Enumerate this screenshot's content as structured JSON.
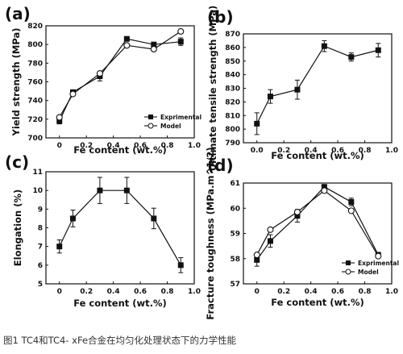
{
  "caption": "图1 TC4和TC4- xFe合金在均匀化处理状态下的力学性能",
  "chart_data": [
    {
      "panel": "(a)",
      "type": "line",
      "xlabel": "Fe content (wt.%)",
      "ylabel": "Yield strength (MPa)",
      "xlim": [
        -0.1,
        1.0
      ],
      "ylim": [
        700,
        820
      ],
      "xticks": [
        "0",
        "0.2",
        "0.4",
        "0.6",
        "0.8",
        "1.0"
      ],
      "yticks": [
        "700",
        "720",
        "740",
        "760",
        "780",
        "800",
        "820"
      ],
      "legend_position": "lower-right",
      "series": [
        {
          "name": "Exprimental",
          "marker": "filled-square",
          "x": [
            0,
            0.1,
            0.3,
            0.5,
            0.7,
            0.9
          ],
          "y": [
            718,
            749,
            766,
            806,
            800,
            803
          ],
          "err": [
            3,
            2,
            5,
            2,
            2,
            4
          ]
        },
        {
          "name": "Model",
          "marker": "open-circle",
          "x": [
            0,
            0.1,
            0.3,
            0.5,
            0.7,
            0.9
          ],
          "y": [
            722,
            747,
            769,
            799,
            795,
            814
          ]
        }
      ]
    },
    {
      "panel": "(b)",
      "type": "line",
      "xlabel": "Fe content (wt.%)",
      "ylabel": "Ultimate tensile strength (MPa)",
      "xlim": [
        -0.1,
        1.0
      ],
      "ylim": [
        790,
        870
      ],
      "xticks": [
        "0.0",
        "0.2",
        "0.4",
        "0.6",
        "0.8",
        "1.0"
      ],
      "yticks": [
        "790",
        "800",
        "810",
        "820",
        "830",
        "840",
        "850",
        "860",
        "870"
      ],
      "series": [
        {
          "marker": "filled-square",
          "x": [
            0,
            0.1,
            0.3,
            0.5,
            0.7,
            0.9
          ],
          "y": [
            804,
            824,
            829,
            861,
            853,
            858
          ],
          "err": [
            8,
            5,
            7,
            4,
            3,
            5
          ]
        }
      ]
    },
    {
      "panel": "(c)",
      "type": "line",
      "xlabel": "Fe content (wt.%)",
      "ylabel": "Elongation (%)",
      "xlim": [
        -0.1,
        1.0
      ],
      "ylim": [
        5,
        11
      ],
      "xticks": [
        "0",
        "0.2",
        "0.4",
        "0.6",
        "0.8",
        "1.0"
      ],
      "yticks": [
        "5",
        "6",
        "7",
        "8",
        "9",
        "10",
        "11"
      ],
      "series": [
        {
          "marker": "filled-square",
          "x": [
            0,
            0.1,
            0.3,
            0.5,
            0.7,
            0.9
          ],
          "y": [
            7.0,
            8.5,
            10.0,
            10.0,
            8.5,
            6.0
          ],
          "err": [
            0.35,
            0.45,
            0.7,
            0.7,
            0.55,
            0.4
          ]
        }
      ]
    },
    {
      "panel": "(d)",
      "type": "line",
      "xlabel": "Fe content (wt.%)",
      "ylabel": "Fracture toughness (MPa.m^1/2)",
      "xlim": [
        -0.1,
        1.0
      ],
      "ylim": [
        57,
        61
      ],
      "xticks": [
        "0",
        "0.2",
        "0.4",
        "0.6",
        "0.8",
        "1.0"
      ],
      "yticks": [
        "57",
        "58",
        "59",
        "60",
        "61"
      ],
      "legend_position": "lower-right",
      "series": [
        {
          "name": "Exprimental",
          "marker": "filled-square",
          "x": [
            0,
            0.1,
            0.3,
            0.5,
            0.7,
            0.9
          ],
          "y": [
            57.95,
            58.7,
            59.7,
            60.85,
            60.25,
            58.15
          ],
          "err": [
            0.25,
            0.25,
            0.25,
            0.08,
            0.15,
            0.1
          ]
        },
        {
          "name": "Model",
          "marker": "open-circle",
          "x": [
            0,
            0.1,
            0.3,
            0.5,
            0.7,
            0.9
          ],
          "y": [
            58.15,
            59.15,
            59.85,
            60.7,
            59.9,
            58.1
          ]
        }
      ]
    }
  ]
}
